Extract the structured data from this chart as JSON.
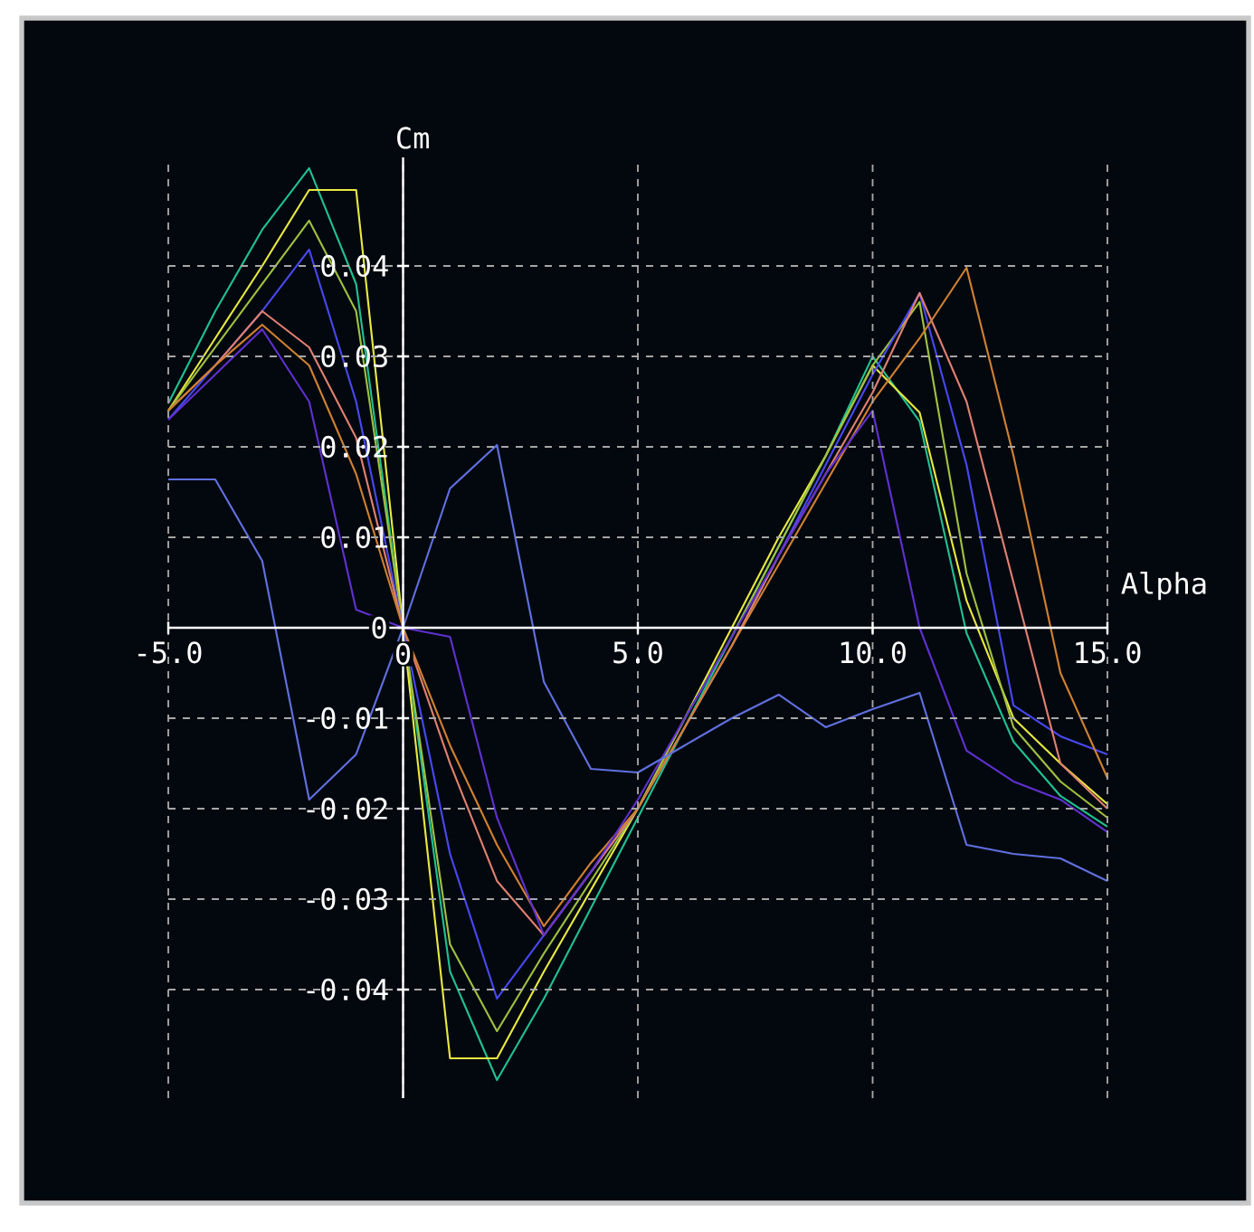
{
  "chart_data": {
    "type": "line",
    "xlabel": "Alpha",
    "ylabel": "Cm",
    "x": [
      -5,
      -4,
      -3,
      -2,
      -1,
      0,
      1,
      2,
      3,
      4,
      5,
      6,
      7,
      8,
      9,
      10,
      11,
      12,
      13,
      14,
      15
    ],
    "xlim": [
      -5,
      15
    ],
    "ylim": [
      -0.052,
      0.052
    ],
    "xticks": [
      {
        "value": -5,
        "label": "-5.0"
      },
      {
        "value": 0,
        "label": "0"
      },
      {
        "value": 5,
        "label": "5.0"
      },
      {
        "value": 10,
        "label": "10.0"
      },
      {
        "value": 15,
        "label": "15.0"
      }
    ],
    "yticks": [
      -0.04,
      -0.03,
      -0.02,
      -0.01,
      0,
      0.01,
      0.02,
      0.03,
      0.04
    ],
    "grid": true,
    "series": [
      {
        "color": "#20c090",
        "values": [
          0.0248,
          0.035,
          0.044,
          0.0508,
          0.038,
          0,
          -0.038,
          -0.05,
          -0.041,
          -0.031,
          -0.021,
          -0.011,
          -0.001,
          0.009,
          0.019,
          0.03,
          0.0228,
          -0.0006,
          -0.0126,
          -0.0186,
          -0.022
        ]
      },
      {
        "color": "#e8e840",
        "values": [
          0.024,
          0.032,
          0.04,
          0.0484,
          0.0484,
          0,
          -0.0476,
          -0.0476,
          -0.038,
          -0.029,
          -0.02,
          -0.01,
          0.0,
          0.01,
          0.019,
          0.029,
          0.0238,
          0.003,
          -0.01,
          -0.015,
          -0.0195
        ]
      },
      {
        "color": "#a0c040",
        "values": [
          0.024,
          0.031,
          0.038,
          0.045,
          0.035,
          0,
          -0.035,
          -0.0446,
          -0.036,
          -0.028,
          -0.02,
          -0.01,
          -0.001,
          0.009,
          0.019,
          0.029,
          0.036,
          0.006,
          -0.011,
          -0.017,
          -0.021
        ]
      },
      {
        "color": "#4848f0",
        "values": [
          0.023,
          0.029,
          0.035,
          0.0418,
          0.025,
          0,
          -0.025,
          -0.041,
          -0.034,
          -0.027,
          -0.02,
          -0.011,
          -0.002,
          0.008,
          0.018,
          0.028,
          0.037,
          0.018,
          -0.0086,
          -0.012,
          -0.014
        ]
      },
      {
        "color": "#e08070",
        "values": [
          0.024,
          0.029,
          0.035,
          0.031,
          0.021,
          0,
          -0.015,
          -0.028,
          -0.034,
          -0.027,
          -0.02,
          -0.011,
          -0.002,
          0.008,
          0.017,
          0.026,
          0.037,
          0.025,
          0.005,
          -0.015,
          -0.02
        ]
      },
      {
        "color": "#d08030",
        "values": [
          0.024,
          0.029,
          0.0335,
          0.029,
          0.017,
          0,
          -0.013,
          -0.024,
          -0.033,
          -0.026,
          -0.02,
          -0.011,
          -0.002,
          0.007,
          0.016,
          0.025,
          0.032,
          0.0398,
          0.019,
          -0.005,
          -0.0166
        ]
      },
      {
        "color": "#6030d0",
        "values": [
          0.023,
          0.028,
          0.033,
          0.025,
          0.002,
          0,
          -0.001,
          -0.021,
          -0.034,
          -0.027,
          -0.019,
          -0.01,
          -0.001,
          0.008,
          0.017,
          0.024,
          0.0,
          -0.0136,
          -0.017,
          -0.019,
          -0.0226
        ]
      },
      {
        "color": "#6070e0",
        "values": [
          0.0164,
          0.0164,
          0.0074,
          -0.019,
          -0.014,
          0,
          0.0154,
          0.0202,
          -0.006,
          -0.0156,
          -0.016,
          -0.013,
          -0.01,
          -0.0074,
          -0.011,
          -0.009,
          -0.0072,
          -0.024,
          -0.025,
          -0.0255,
          -0.028
        ]
      }
    ]
  }
}
